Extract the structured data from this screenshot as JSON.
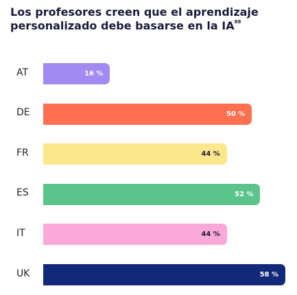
{
  "chart_data": {
    "type": "bar",
    "orientation": "horizontal",
    "title": "Los profesores creen que el aprendizaje personalizado debe basarse en la IA",
    "title_footnote": "88",
    "categories": [
      "AT",
      "DE",
      "FR",
      "ES",
      "IT",
      "UK"
    ],
    "values": [
      16,
      50,
      44,
      52,
      44,
      58
    ],
    "value_labels": [
      "16 %",
      "50 %",
      "44 %",
      "52 %",
      "44 %",
      "58 %"
    ],
    "unit": "%",
    "xlim": [
      0,
      58
    ],
    "grid": false,
    "legend": "none",
    "colors": [
      "#a18af2",
      "#ff6f50",
      "#fce78a",
      "#5bc48a",
      "#f9a8d8",
      "#122878"
    ],
    "label_colors": [
      "#ffffff",
      "#ffffff",
      "#1a1a3a",
      "#ffffff",
      "#1a1a3a",
      "#ffffff"
    ]
  }
}
